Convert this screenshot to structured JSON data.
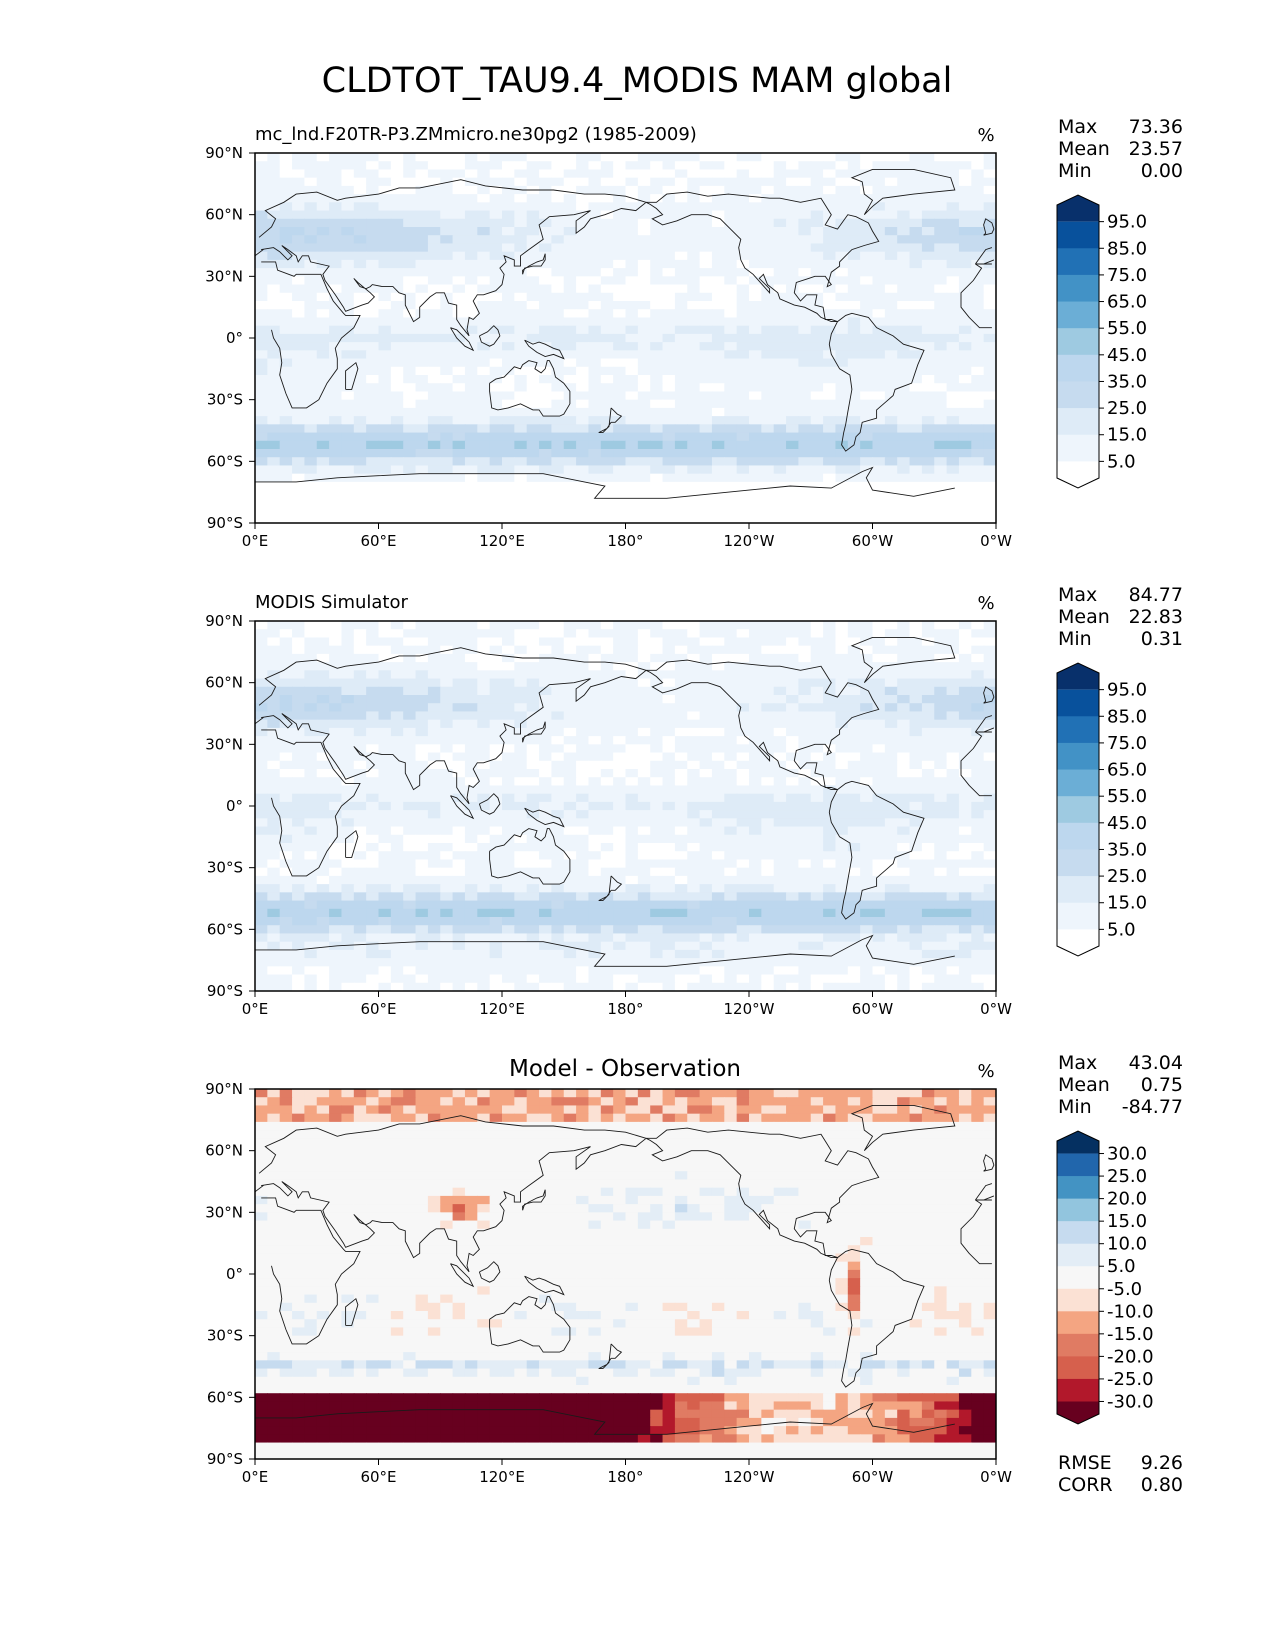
{
  "figure": {
    "title": "CLDTOT_TAU9.4_MODIS MAM global"
  },
  "axes": {
    "lat_labels": [
      "90°N",
      "60°N",
      "30°N",
      "0°",
      "30°S",
      "60°S",
      "90°S"
    ],
    "lon_labels": [
      "0°E",
      "60°E",
      "120°E",
      "180°",
      "120°W",
      "60°W",
      "0°W"
    ]
  },
  "panels": [
    {
      "id": "test",
      "left_title": "mc_lnd.F20TR-P3.ZMmicro.ne30pg2 (1985-2009)",
      "center_title": "",
      "units": "%",
      "stats": [
        {
          "label": "Max",
          "value": "73.36"
        },
        {
          "label": "Mean",
          "value": "23.57"
        },
        {
          "label": "Min",
          "value": "0.00"
        }
      ],
      "colorbar": {
        "ticks": [
          "95.0",
          "85.0",
          "75.0",
          "65.0",
          "55.0",
          "45.0",
          "35.0",
          "25.0",
          "15.0",
          "5.0"
        ],
        "colors": [
          "#08306b",
          "#08519c",
          "#2171b5",
          "#4292c6",
          "#6baed6",
          "#9ecae1",
          "#bdd7ee",
          "#c6dbef",
          "#deebf7",
          "#eef5fc",
          "#ffffff"
        ]
      },
      "field_style": "model",
      "footer": []
    },
    {
      "id": "ref",
      "left_title": "MODIS Simulator",
      "center_title": "",
      "units": "%",
      "stats": [
        {
          "label": "Max",
          "value": "84.77"
        },
        {
          "label": "Mean",
          "value": "22.83"
        },
        {
          "label": "Min",
          "value": "0.31"
        }
      ],
      "colorbar": {
        "ticks": [
          "95.0",
          "85.0",
          "75.0",
          "65.0",
          "55.0",
          "45.0",
          "35.0",
          "25.0",
          "15.0",
          "5.0"
        ],
        "colors": [
          "#08306b",
          "#08519c",
          "#2171b5",
          "#4292c6",
          "#6baed6",
          "#9ecae1",
          "#bdd7ee",
          "#c6dbef",
          "#deebf7",
          "#eef5fc",
          "#ffffff"
        ]
      },
      "field_style": "obs",
      "footer": []
    },
    {
      "id": "diff",
      "left_title": "",
      "center_title": "Model - Observation",
      "units": "%",
      "stats": [
        {
          "label": "Max",
          "value": "43.04"
        },
        {
          "label": "Mean",
          "value": "0.75"
        },
        {
          "label": "Min",
          "value": "-84.77"
        }
      ],
      "colorbar": {
        "ticks": [
          "30.0",
          "25.0",
          "20.0",
          "15.0",
          "10.0",
          "5.0",
          "-5.0",
          "-10.0",
          "-15.0",
          "-20.0",
          "-25.0",
          "-30.0"
        ],
        "colors": [
          "#053061",
          "#2166ac",
          "#4393c3",
          "#92c5de",
          "#c6dbef",
          "#e3edf6",
          "#f7f7f7",
          "#fbe1d4",
          "#f4a582",
          "#e07b63",
          "#d6604d",
          "#b2182b",
          "#67001f"
        ]
      },
      "field_style": "diff",
      "footer": [
        {
          "label": "RMSE",
          "value": "9.26"
        },
        {
          "label": "CORR",
          "value": "0.80"
        }
      ]
    }
  ]
}
